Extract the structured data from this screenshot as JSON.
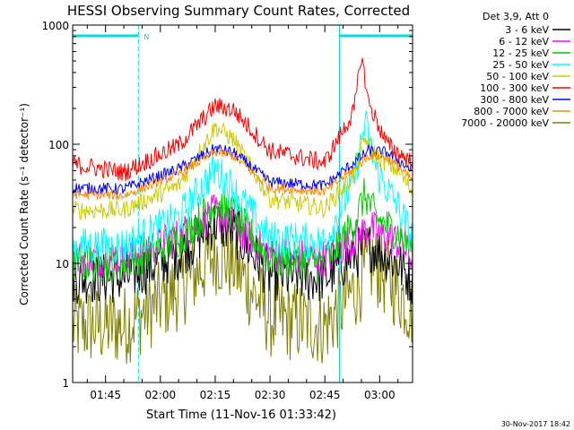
{
  "title": "HESSI Observing Summary Count Rates, Corrected",
  "footer_timestamp": "30-Nov-2017 18:42",
  "chart_data": {
    "type": "line",
    "title": "HESSI Observing Summary Count Rates, Corrected",
    "xlabel": "Start Time (11-Nov-16 01:33:42)",
    "ylabel": "Corrected Count Rate (s⁻¹ detector⁻¹)",
    "y_scale": "log",
    "ylim": [
      1,
      1000
    ],
    "y_ticks": [
      {
        "label": "1",
        "value": 1
      },
      {
        "label": "10",
        "value": 10
      },
      {
        "label": "100",
        "value": 100
      },
      {
        "label": "1000",
        "value": 1000
      }
    ],
    "xlim": [
      "01:36",
      "03:09"
    ],
    "x_ticks": [
      "01:45",
      "02:00",
      "02:15",
      "02:30",
      "02:45",
      "03:00"
    ],
    "grid": false,
    "legend_placement": "right",
    "legend_header": "Det 3,9, Att 0",
    "night_intervals": [
      {
        "start": "01:36",
        "end": "01:54",
        "label": "N"
      },
      {
        "start": "02:49",
        "end": "03:09",
        "label": ""
      }
    ],
    "series": [
      {
        "name": "3 - 6 keV",
        "color": "#000000",
        "noise": 0.22,
        "points": [
          [
            "01:36",
            7.5
          ],
          [
            "01:50",
            7.5
          ],
          [
            "02:05",
            12
          ],
          [
            "02:15",
            22
          ],
          [
            "02:20",
            19
          ],
          [
            "02:30",
            8
          ],
          [
            "02:45",
            7.5
          ],
          [
            "02:53",
            12
          ],
          [
            "02:58",
            14
          ],
          [
            "03:05",
            10
          ],
          [
            "03:09",
            7
          ]
        ]
      },
      {
        "name": "6 - 12 keV",
        "color": "#ff00ff",
        "noise": 0.16,
        "points": [
          [
            "01:36",
            11
          ],
          [
            "01:50",
            11
          ],
          [
            "02:05",
            17
          ],
          [
            "02:15",
            27
          ],
          [
            "02:20",
            21
          ],
          [
            "02:30",
            12
          ],
          [
            "02:45",
            11
          ],
          [
            "02:53",
            16
          ],
          [
            "02:57",
            20
          ],
          [
            "03:05",
            15
          ],
          [
            "03:09",
            11
          ]
        ]
      },
      {
        "name": "12 - 25 keV",
        "color": "#00cc00",
        "noise": 0.16,
        "points": [
          [
            "01:36",
            10
          ],
          [
            "01:50",
            10
          ],
          [
            "02:05",
            16
          ],
          [
            "02:15",
            32
          ],
          [
            "02:20",
            26
          ],
          [
            "02:30",
            11
          ],
          [
            "02:45",
            10
          ],
          [
            "02:53",
            22
          ],
          [
            "02:56",
            38
          ],
          [
            "02:59",
            24
          ],
          [
            "03:05",
            18
          ],
          [
            "03:09",
            13
          ]
        ]
      },
      {
        "name": "25 - 50 keV",
        "color": "#00ffff",
        "noise": 0.16,
        "points": [
          [
            "01:36",
            14
          ],
          [
            "01:50",
            14
          ],
          [
            "02:05",
            24
          ],
          [
            "02:15",
            62
          ],
          [
            "02:20",
            42
          ],
          [
            "02:30",
            16
          ],
          [
            "02:45",
            15
          ],
          [
            "02:53",
            50
          ],
          [
            "02:56",
            150
          ],
          [
            "02:59",
            60
          ],
          [
            "03:05",
            30
          ],
          [
            "03:09",
            16
          ]
        ]
      },
      {
        "name": "50 - 100 keV",
        "color": "#cccc00",
        "noise": 0.08,
        "points": [
          [
            "01:36",
            28
          ],
          [
            "01:50",
            28
          ],
          [
            "02:05",
            45
          ],
          [
            "02:15",
            140
          ],
          [
            "02:20",
            110
          ],
          [
            "02:30",
            35
          ],
          [
            "02:45",
            29
          ],
          [
            "02:53",
            55
          ],
          [
            "02:56",
            110
          ],
          [
            "02:59",
            80
          ],
          [
            "03:05",
            60
          ],
          [
            "03:09",
            40
          ]
        ]
      },
      {
        "name": "100 - 300 keV",
        "color": "#ff0000",
        "noise": 0.08,
        "points": [
          [
            "01:36",
            68
          ],
          [
            "01:50",
            58
          ],
          [
            "02:05",
            98
          ],
          [
            "02:15",
            210
          ],
          [
            "02:20",
            195
          ],
          [
            "02:30",
            88
          ],
          [
            "02:45",
            70
          ],
          [
            "02:53",
            190
          ],
          [
            "02:55",
            560
          ],
          [
            "02:57",
            220
          ],
          [
            "03:02",
            100
          ],
          [
            "03:09",
            70
          ]
        ]
      },
      {
        "name": "300 - 800 keV",
        "color": "#0000ff",
        "noise": 0.05,
        "points": [
          [
            "01:36",
            43
          ],
          [
            "01:50",
            42
          ],
          [
            "02:05",
            62
          ],
          [
            "02:15",
            92
          ],
          [
            "02:20",
            85
          ],
          [
            "02:30",
            48
          ],
          [
            "02:45",
            45
          ],
          [
            "02:53",
            70
          ],
          [
            "02:57",
            88
          ],
          [
            "03:02",
            85
          ],
          [
            "03:09",
            60
          ]
        ]
      },
      {
        "name": "800 - 7000 keV",
        "color": "#ff8800",
        "noise": 0.04,
        "points": [
          [
            "01:36",
            38
          ],
          [
            "01:50",
            37
          ],
          [
            "02:05",
            56
          ],
          [
            "02:15",
            86
          ],
          [
            "02:20",
            80
          ],
          [
            "02:30",
            43
          ],
          [
            "02:45",
            40
          ],
          [
            "02:53",
            62
          ],
          [
            "02:57",
            80
          ],
          [
            "03:02",
            78
          ],
          [
            "03:09",
            50
          ]
        ]
      },
      {
        "name": "7000 - 20000 keV",
        "color": "#808000",
        "noise": 0.35,
        "points": [
          [
            "01:36",
            3.0
          ],
          [
            "01:50",
            3.0
          ],
          [
            "02:05",
            6
          ],
          [
            "02:15",
            12
          ],
          [
            "02:20",
            10
          ],
          [
            "02:30",
            3.5
          ],
          [
            "02:45",
            3.0
          ],
          [
            "02:53",
            6
          ],
          [
            "02:58",
            10
          ],
          [
            "03:05",
            6
          ],
          [
            "03:09",
            4
          ]
        ]
      }
    ]
  }
}
